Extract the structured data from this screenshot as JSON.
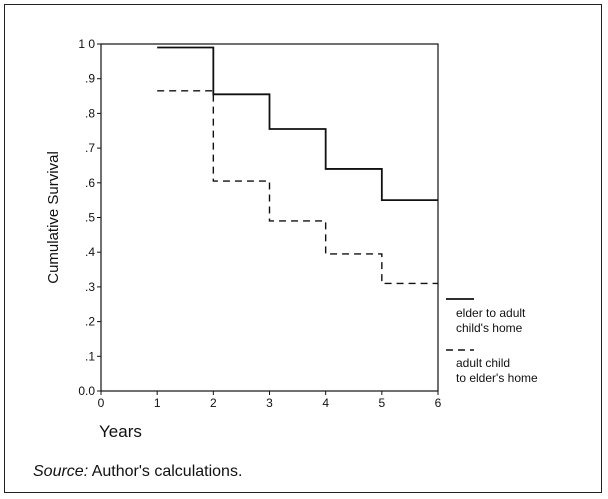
{
  "chart_data": {
    "type": "line",
    "step": true,
    "title": "",
    "xlabel": "Years",
    "ylabel": "Cumulative Survival",
    "xlim": [
      0,
      6
    ],
    "ylim": [
      0,
      1
    ],
    "xticks": [
      0,
      1,
      2,
      3,
      4,
      5,
      6
    ],
    "xtick_labels": [
      "0",
      "1",
      "2",
      "3",
      "4",
      "5",
      "6"
    ],
    "yticks": [
      0,
      0.1,
      0.2,
      0.3,
      0.4,
      0.5,
      0.6,
      0.7,
      0.8,
      0.9,
      1.0
    ],
    "ytick_labels": [
      "0.0",
      ".1",
      ".2",
      ".3",
      ".4",
      ".5",
      ".6",
      ".7",
      ".8",
      ".9",
      "1 0"
    ],
    "grid": false,
    "legend_position": "right",
    "series": [
      {
        "name": "elder to adult child's home",
        "legend_lines": [
          "elder to adult",
          "child's home"
        ],
        "style": "solid",
        "x": [
          1,
          2,
          3,
          4,
          5,
          6
        ],
        "y": [
          0.99,
          0.855,
          0.755,
          0.64,
          0.55,
          0.55
        ]
      },
      {
        "name": "adult child to elder's home",
        "legend_lines": [
          "adult child",
          "to elder's home"
        ],
        "style": "dashed",
        "x": [
          1,
          2,
          3,
          4,
          5,
          6
        ],
        "y": [
          0.865,
          0.605,
          0.49,
          0.395,
          0.31,
          0.31
        ]
      }
    ]
  },
  "source": {
    "label": "Source:",
    "text": "Author's calculations."
  }
}
